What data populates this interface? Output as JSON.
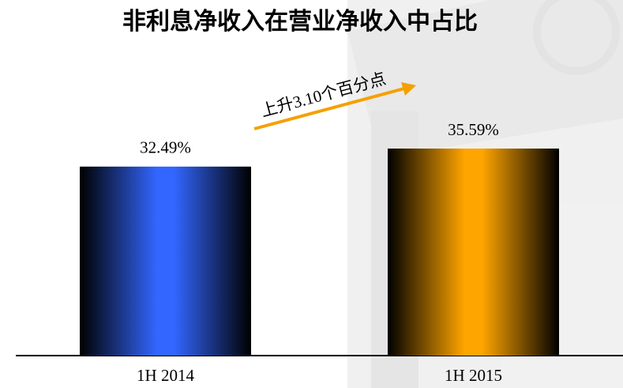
{
  "chart_data": {
    "type": "bar",
    "title": "非利息净收入在营业净收入中占比",
    "annotation": "上升3.10个百分点",
    "categories": [
      "1H 2014",
      "1H 2015"
    ],
    "values": [
      32.49,
      35.59
    ],
    "value_labels": [
      "32.49%",
      "35.59%"
    ],
    "colors": [
      "#3366ff",
      "#ffa500"
    ]
  }
}
